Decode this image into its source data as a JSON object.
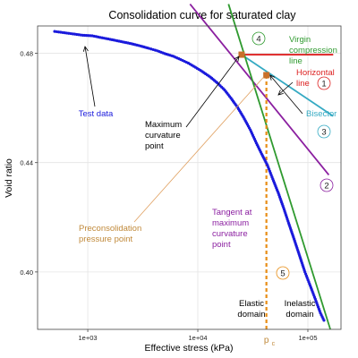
{
  "chart_data": {
    "type": "scatter",
    "title": "Consolidation curve for saturated clay",
    "xlabel": "Effective stress (kPa)",
    "ylabel": "Void ratio",
    "x_scale": "log",
    "xlim": [
      350,
      200000
    ],
    "ylim": [
      0.379,
      0.49
    ],
    "grid": true,
    "x_ticks": [
      {
        "value": 1000,
        "label": "1e+03"
      },
      {
        "value": 10000,
        "label": "1e+04"
      },
      {
        "value": 100000,
        "label": "1e+05"
      }
    ],
    "y_ticks": [
      {
        "value": 0.4,
        "label": "0.40"
      },
      {
        "value": 0.44,
        "label": "0.44"
      },
      {
        "value": 0.48,
        "label": "0.48"
      }
    ],
    "test_data": {
      "name": "Test data",
      "color": "#1a1adc",
      "points": [
        [
          500,
          0.488
        ],
        [
          700,
          0.4872
        ],
        [
          900,
          0.4866
        ],
        [
          1100,
          0.4864
        ],
        [
          1300,
          0.4858
        ],
        [
          1600,
          0.4851
        ],
        [
          2000,
          0.4843
        ],
        [
          2500,
          0.4835
        ],
        [
          3000,
          0.4827
        ],
        [
          3600,
          0.4818
        ],
        [
          4300,
          0.4809
        ],
        [
          5000,
          0.4799
        ],
        [
          6000,
          0.4789
        ],
        [
          7000,
          0.4777
        ],
        [
          8200,
          0.4764
        ],
        [
          9500,
          0.4749
        ],
        [
          11000,
          0.4733
        ],
        [
          13000,
          0.4713
        ],
        [
          15000,
          0.4692
        ],
        [
          17500,
          0.4666
        ],
        [
          20000,
          0.4636
        ],
        [
          23000,
          0.4602
        ],
        [
          26000,
          0.4566
        ],
        [
          30000,
          0.452
        ],
        [
          34000,
          0.4472
        ],
        [
          38000,
          0.4432
        ],
        [
          43000,
          0.439
        ],
        [
          48000,
          0.434
        ],
        [
          54000,
          0.4288
        ],
        [
          60000,
          0.4236
        ],
        [
          67000,
          0.4178
        ],
        [
          75000,
          0.412
        ],
        [
          84000,
          0.406
        ],
        [
          94000,
          0.4
        ],
        [
          105000,
          0.395
        ],
        [
          117000,
          0.39
        ],
        [
          130000,
          0.385
        ],
        [
          140000,
          0.3823
        ]
      ]
    },
    "lines": [
      {
        "id": "horizontal",
        "name": "Horizontal line",
        "number": "1",
        "color": "#dd2222",
        "from": [
          25000,
          0.4795
        ],
        "to": [
          170000,
          0.4795
        ]
      },
      {
        "id": "tangent",
        "name": "Tangent at maximum curvature point",
        "number": "2",
        "color": "#8b1fa0",
        "from": [
          8500,
          0.498
        ],
        "to": [
          155000,
          0.4355
        ]
      },
      {
        "id": "bisector",
        "name": "Bisector",
        "number": "3",
        "color": "#35aac3",
        "from": [
          25000,
          0.4795
        ],
        "to": [
          170000,
          0.457
        ]
      },
      {
        "id": "virgin",
        "name": "Virgin compression line",
        "number": "4",
        "color": "#2f9a2f",
        "from": [
          19000,
          0.498
        ],
        "to": [
          160000,
          0.379
        ]
      },
      {
        "id": "preconsolidation",
        "name": "",
        "number": "5",
        "color": "#e88e17",
        "dashed": true,
        "from": [
          42000,
          0.472
        ],
        "to": [
          42000,
          0.379
        ]
      }
    ],
    "points": [
      {
        "id": "max_curvature",
        "label": "Maximum curvature point",
        "x": 25000,
        "y": 0.4795,
        "color": "#c8702a"
      },
      {
        "id": "preconsolidation",
        "label": "Preconsolidation pressure point",
        "x": 42000,
        "y": 0.472,
        "color": "#c8702a"
      }
    ],
    "annotations": {
      "test_data": "Test data",
      "max_curvature": [
        "Maximum",
        "curvature",
        "point"
      ],
      "preconsolidation": [
        "Preconsolidation",
        "pressure point"
      ],
      "tangent": [
        "Tangent at",
        "maximum",
        "curvature",
        "point"
      ],
      "virgin": [
        "Virgin",
        "compression",
        "line"
      ],
      "horizontal": [
        "Horizontal",
        "line"
      ],
      "bisector": "Bisector",
      "elastic": [
        "Elastic",
        "domain"
      ],
      "inelastic": [
        "Inelastic",
        "domain"
      ],
      "pc": "p",
      "pc_sub": "c"
    },
    "numbers": {
      "horizontal": "1",
      "tangent": "2",
      "bisector": "3",
      "virgin": "4",
      "preconsolidation": "5"
    }
  }
}
